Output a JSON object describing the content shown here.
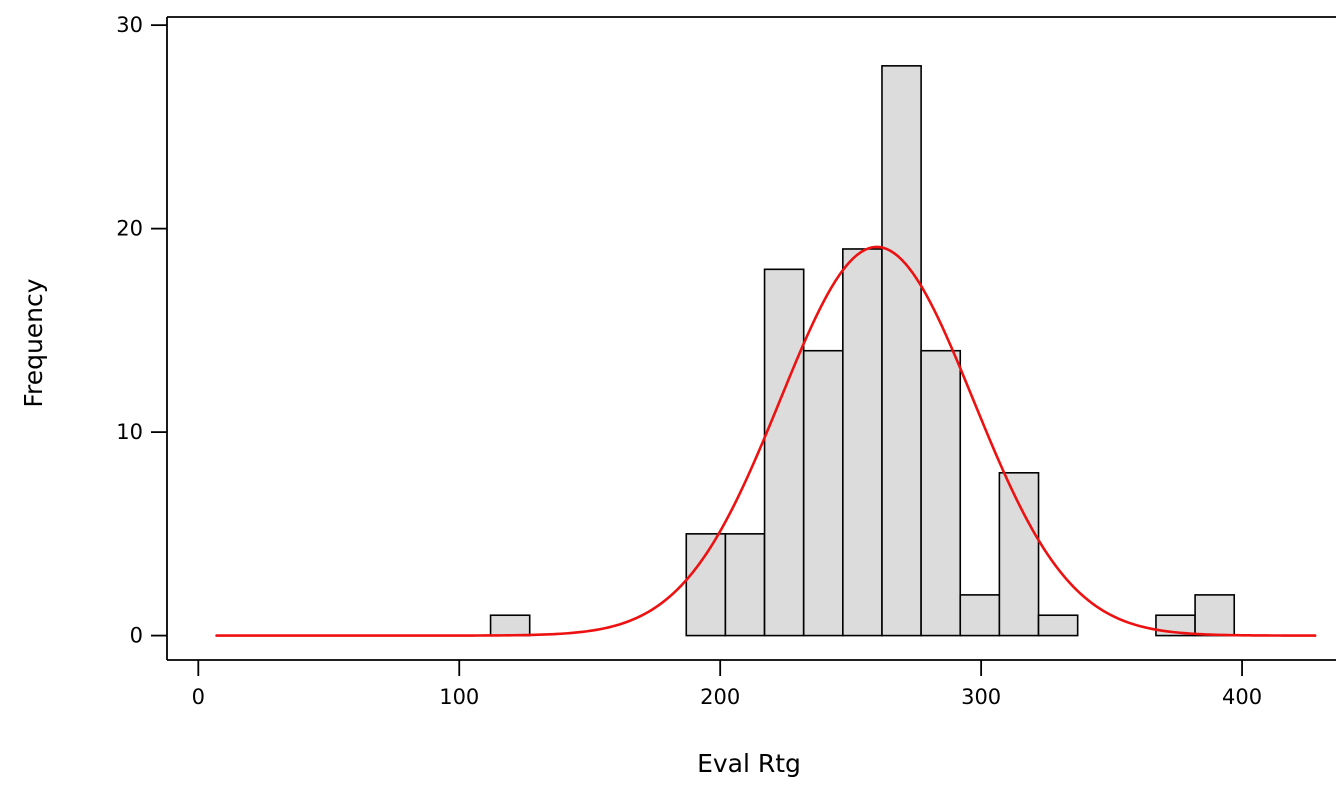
{
  "chart_data": {
    "type": "bar",
    "title": "",
    "xlabel": "Eval Rtg",
    "ylabel": "Frequency",
    "xlim": [
      -12,
      436
    ],
    "ylim": [
      -1.2,
      30.4
    ],
    "x_ticks": [
      0,
      100,
      200,
      300,
      400
    ],
    "x_tick_labels": [
      "0",
      "100",
      "200",
      "300",
      "400"
    ],
    "y_ticks": [
      0,
      10,
      20,
      30
    ],
    "y_tick_labels": [
      "0",
      "10",
      "20",
      "30"
    ],
    "grid": false,
    "legend": "none",
    "histogram": {
      "bin_width": 15,
      "bins": [
        {
          "start": 112,
          "end": 127,
          "count": 1
        },
        {
          "start": 187,
          "end": 202,
          "count": 5
        },
        {
          "start": 202,
          "end": 217,
          "count": 5
        },
        {
          "start": 217,
          "end": 232,
          "count": 18
        },
        {
          "start": 232,
          "end": 247,
          "count": 14
        },
        {
          "start": 247,
          "end": 262,
          "count": 19
        },
        {
          "start": 262,
          "end": 277,
          "count": 28
        },
        {
          "start": 277,
          "end": 292,
          "count": 14
        },
        {
          "start": 292,
          "end": 307,
          "count": 2
        },
        {
          "start": 307,
          "end": 322,
          "count": 8
        },
        {
          "start": 322,
          "end": 337,
          "count": 1
        },
        {
          "start": 367,
          "end": 382,
          "count": 1
        },
        {
          "start": 382,
          "end": 397,
          "count": 2
        }
      ]
    },
    "fit_curve": {
      "type": "normal",
      "mean": 260,
      "std_dev": 37,
      "peak_frequency": 19.1,
      "x_range": [
        7,
        428
      ]
    },
    "colors": {
      "bar_fill": "#dcdcdc",
      "bar_stroke": "#000000",
      "curve": "#ee1111",
      "axis": "#000000"
    }
  }
}
